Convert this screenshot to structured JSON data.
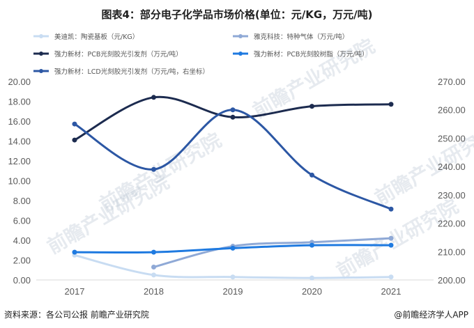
{
  "chart_data": {
    "type": "line",
    "title": "图表4：部分电子化学品市场价格(单位：元/KG，万元/吨)",
    "categories": [
      "2017",
      "2018",
      "2019",
      "2020",
      "2021"
    ],
    "left_axis": {
      "min": 0,
      "max": 20,
      "step": 2,
      "ticks": [
        "0.00",
        "2.00",
        "4.00",
        "6.00",
        "8.00",
        "10.00",
        "12.00",
        "14.00",
        "16.00",
        "18.00",
        "20.00"
      ]
    },
    "right_axis": {
      "min": 200,
      "max": 270,
      "step": 10,
      "ticks": [
        "200.00",
        "210.00",
        "220.00",
        "230.00",
        "240.00",
        "250.00",
        "260.00",
        "270.00"
      ]
    },
    "grid": false,
    "legend_placement": "top",
    "series": [
      {
        "name": "美迪凯：陶瓷基板（元/KG）",
        "color": "#c8dcf2",
        "axis": "left",
        "values": [
          2.5,
          0.5,
          0.3,
          0.2,
          0.3
        ]
      },
      {
        "name": "雅克科技：特种气体（万元/吨）",
        "color": "#8fa9d6",
        "axis": "left",
        "values": [
          null,
          1.3,
          3.4,
          3.8,
          4.2
        ]
      },
      {
        "name": "强力新材：PCB光刻胶光引发剂（万元/吨）",
        "color": "#1c2b4f",
        "axis": "left",
        "values": [
          14.1,
          18.4,
          16.4,
          17.5,
          17.7
        ]
      },
      {
        "name": "强力新材：PCB光刻胶树脂（万元/吨）",
        "color": "#1f7ae0",
        "axis": "left",
        "values": [
          2.8,
          2.8,
          3.2,
          3.5,
          3.5
        ]
      },
      {
        "name": "强力新材：LCD光刻胶光引发剂（万元/吨，右坐标）",
        "color": "#2c57a4",
        "axis": "right",
        "values": [
          255,
          239,
          260,
          237,
          225
        ]
      }
    ]
  },
  "watermark": {
    "text": "前瞻产业研究院"
  },
  "footer": {
    "source": "资料来源：各公司公报 前瞻产业研究院",
    "brand": "@前瞻经济学人APP"
  },
  "colors": {
    "axis": "#d9d9d9",
    "tick_text": "#595959",
    "title": "#1f1f1f"
  }
}
